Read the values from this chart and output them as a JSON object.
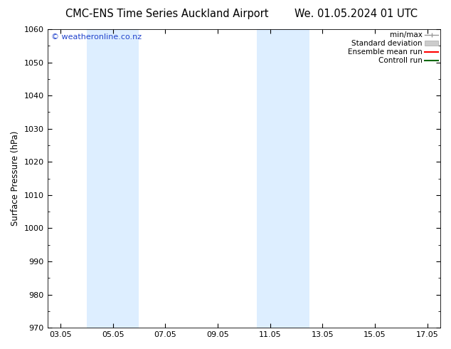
{
  "title_left": "CMC-ENS Time Series Auckland Airport",
  "title_right": "We. 01.05.2024 01 UTC",
  "ylabel": "Surface Pressure (hPa)",
  "ylim": [
    970,
    1060
  ],
  "yticks": [
    970,
    980,
    990,
    1000,
    1010,
    1020,
    1030,
    1040,
    1050,
    1060
  ],
  "xtick_labels": [
    "03.05",
    "05.05",
    "07.05",
    "09.05",
    "11.05",
    "13.05",
    "15.05",
    "17.05"
  ],
  "xtick_positions": [
    3,
    5,
    7,
    9,
    11,
    13,
    15,
    17
  ],
  "xlim": [
    2.5,
    17.5
  ],
  "shaded_bands": [
    {
      "x_start": 4.0,
      "x_end": 5.0,
      "color": "#ddeeff"
    },
    {
      "x_start": 5.0,
      "x_end": 6.0,
      "color": "#ddeeff"
    },
    {
      "x_start": 10.5,
      "x_end": 11.5,
      "color": "#ddeeff"
    },
    {
      "x_start": 11.5,
      "x_end": 12.5,
      "color": "#ddeeff"
    }
  ],
  "watermark_text": "© weatheronline.co.nz",
  "watermark_color": "#2244cc",
  "watermark_fontsize": 8,
  "legend_items": [
    {
      "label": "min/max",
      "color": "#999999",
      "type": "minmax"
    },
    {
      "label": "Standard deviation",
      "color": "#cccccc",
      "type": "box"
    },
    {
      "label": "Ensemble mean run",
      "color": "#ff0000",
      "type": "line"
    },
    {
      "label": "Controll run",
      "color": "#006600",
      "type": "line"
    }
  ],
  "background_color": "#ffffff",
  "plot_bg_color": "#ffffff",
  "title_fontsize": 10.5,
  "axis_label_fontsize": 8.5,
  "tick_fontsize": 8,
  "legend_fontsize": 7.5
}
